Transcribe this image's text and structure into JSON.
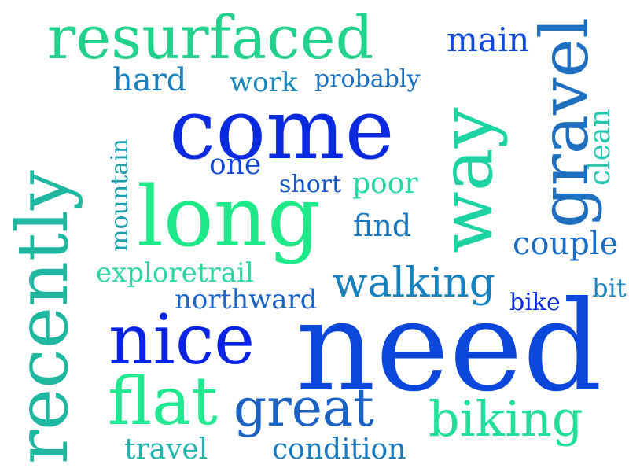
{
  "words": {
    "resurfaced": {
      "text": "resurfaced",
      "color": "#22d18b"
    },
    "main": {
      "text": "main",
      "color": "#1148d6"
    },
    "gravel": {
      "text": "gravel",
      "color": "#1f6fc0"
    },
    "hard": {
      "text": "hard",
      "color": "#1a7fbf"
    },
    "work": {
      "text": "work",
      "color": "#1987b8"
    },
    "probably": {
      "text": "probably",
      "color": "#1a6fbd"
    },
    "way": {
      "text": "way",
      "color": "#1ed3a2"
    },
    "come": {
      "text": "come",
      "color": "#0a2ae0"
    },
    "clean": {
      "text": "clean",
      "color": "#25c7b0"
    },
    "recently": {
      "text": "recently",
      "color": "#1fb79f"
    },
    "mountain": {
      "text": "mountain",
      "color": "#1e9fa9"
    },
    "one": {
      "text": "one",
      "color": "#1249d2"
    },
    "short": {
      "text": "short",
      "color": "#1558cc"
    },
    "poor": {
      "text": "poor",
      "color": "#23d8a1"
    },
    "long": {
      "text": "long",
      "color": "#1de988"
    },
    "find": {
      "text": "find",
      "color": "#1a78c0"
    },
    "couple": {
      "text": "couple",
      "color": "#1a6cc5"
    },
    "exploretrail": {
      "text": "exploretrail",
      "color": "#2bd6a3"
    },
    "walking": {
      "text": "walking",
      "color": "#1681bd"
    },
    "northward": {
      "text": "northward",
      "color": "#1a64c6"
    },
    "bike": {
      "text": "bike",
      "color": "#0b2be0"
    },
    "bit": {
      "text": "bit",
      "color": "#1a84be"
    },
    "nice": {
      "text": "nice",
      "color": "#0923e4"
    },
    "need": {
      "text": "need",
      "color": "#0b47da"
    },
    "flat": {
      "text": "flat",
      "color": "#22e891"
    },
    "great": {
      "text": "great",
      "color": "#1c62c2"
    },
    "biking": {
      "text": "biking",
      "color": "#21df9b"
    },
    "travel": {
      "text": "travel",
      "color": "#22b3b0"
    },
    "condition": {
      "text": "condition",
      "color": "#1a7abf"
    }
  }
}
